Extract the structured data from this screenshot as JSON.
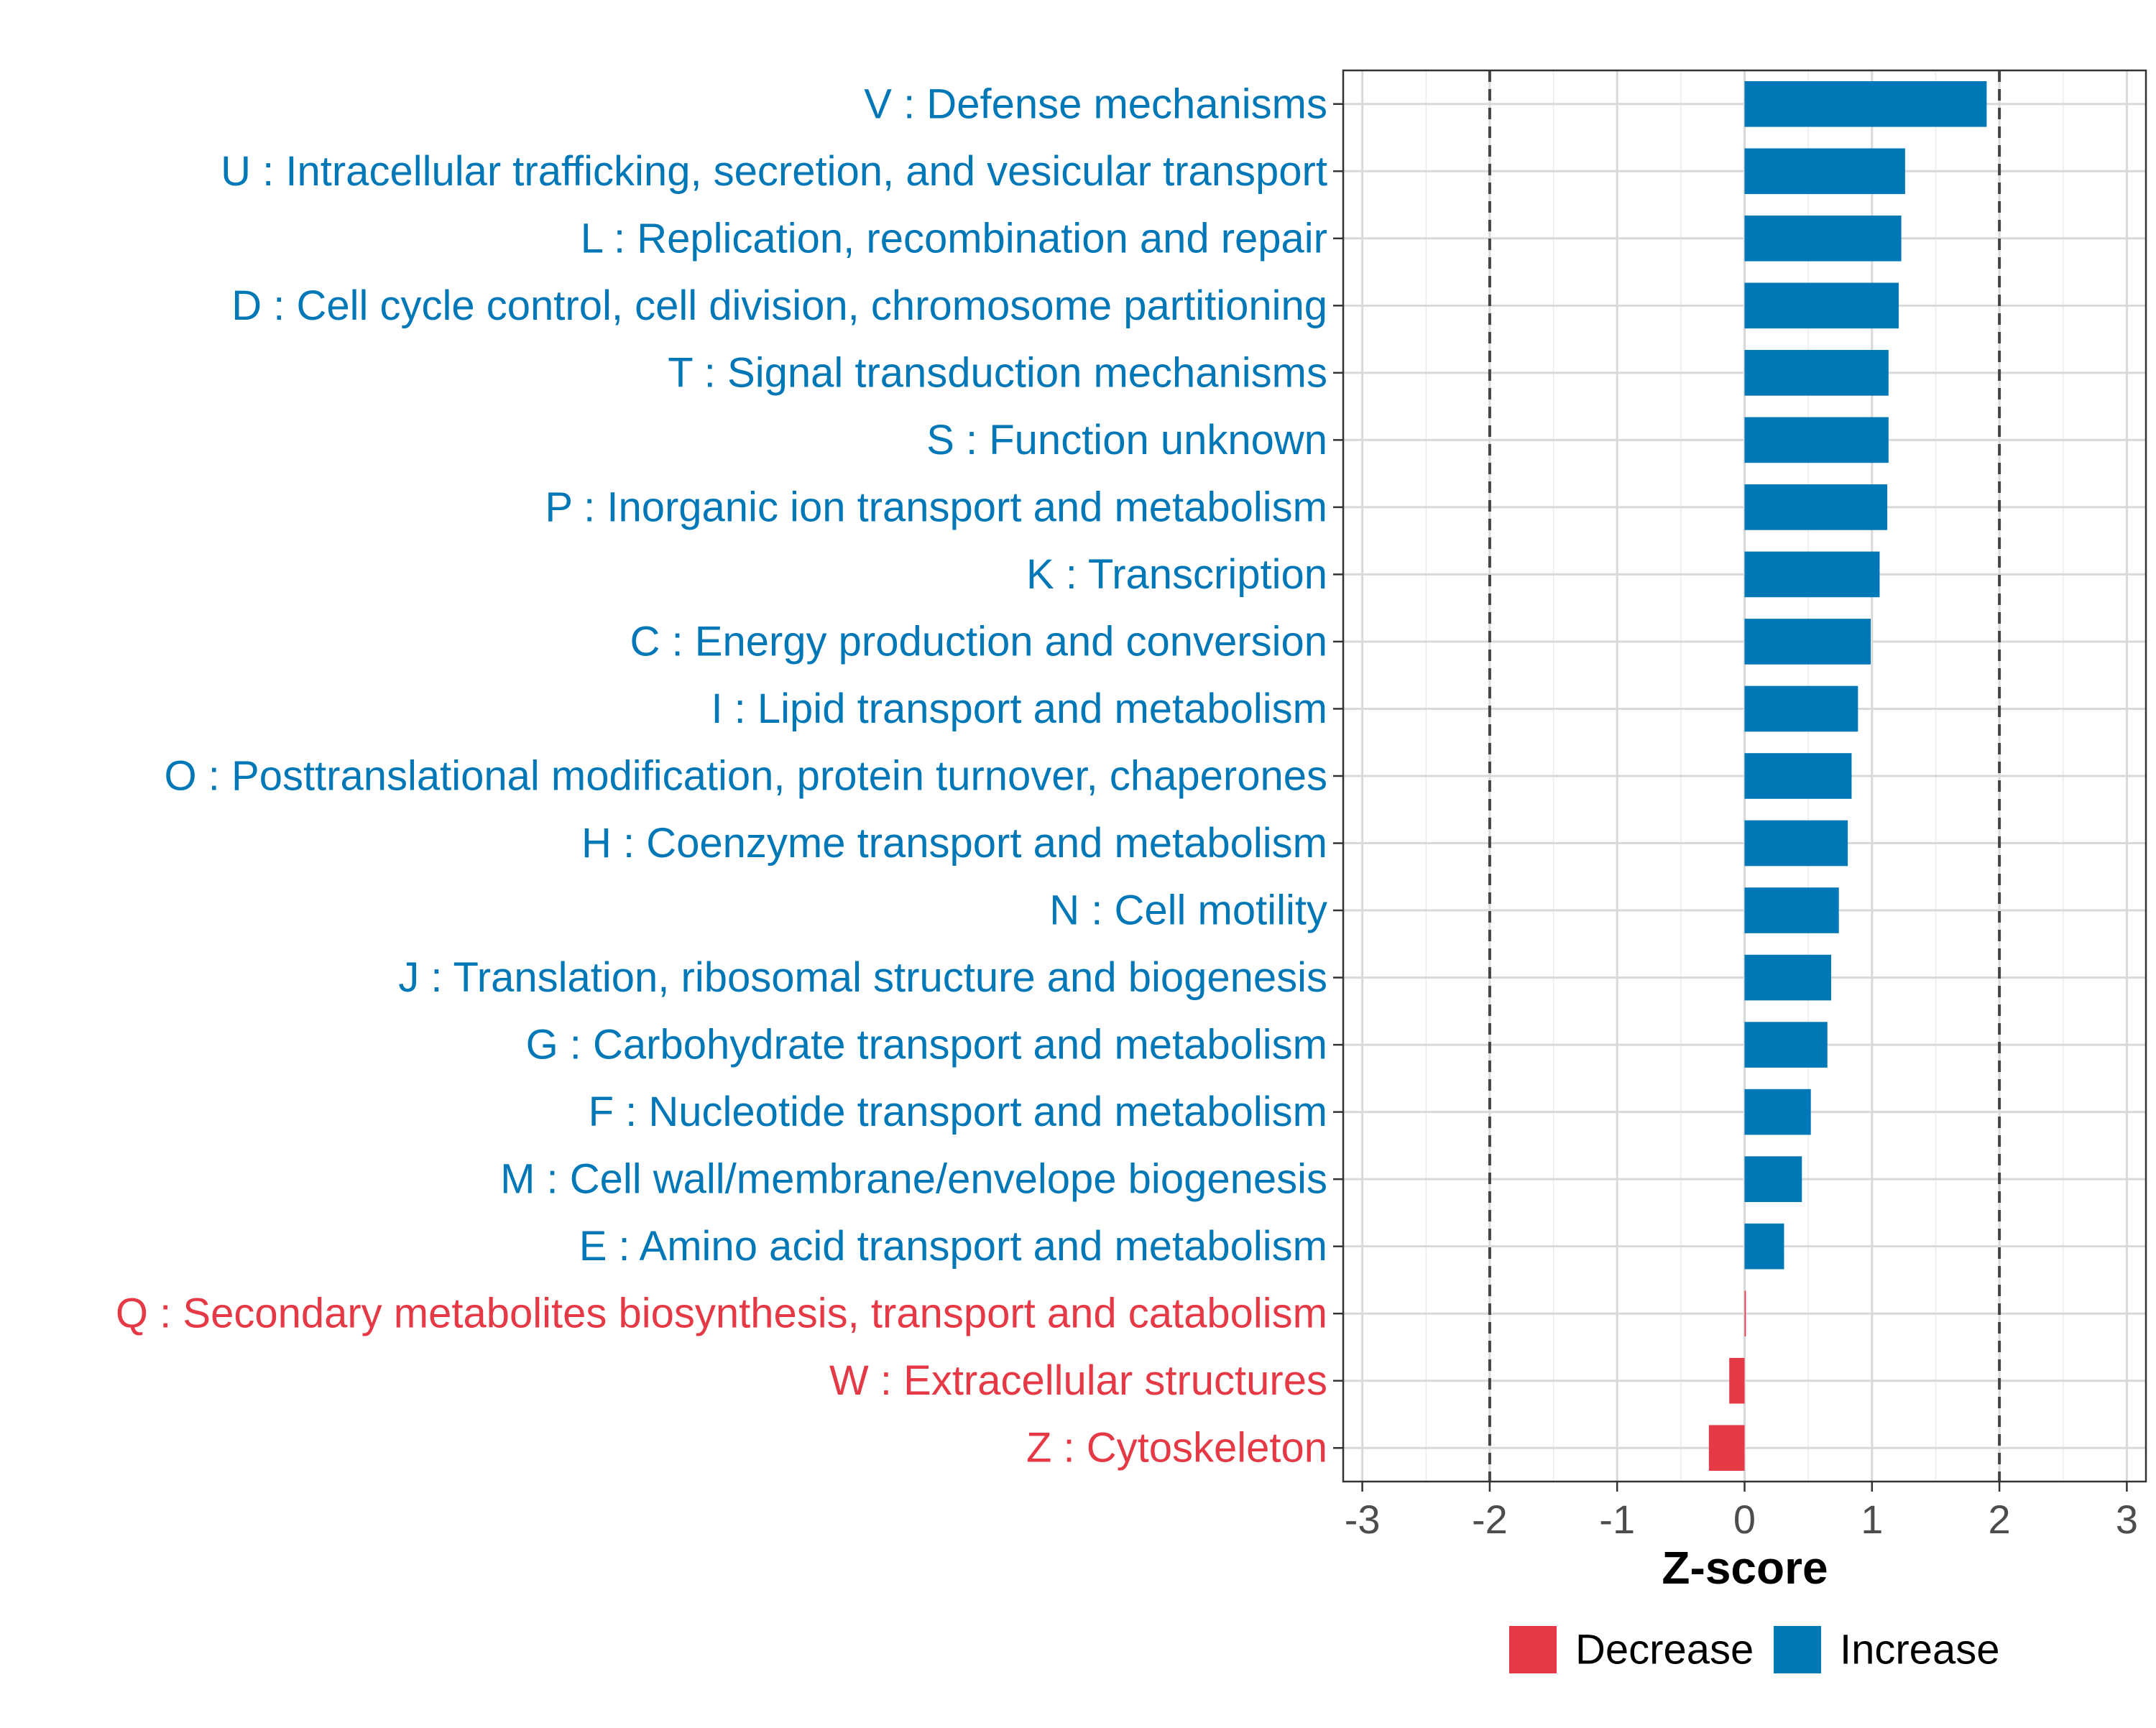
{
  "chart_data": {
    "type": "bar",
    "orientation": "horizontal",
    "xlabel": "Z-score",
    "ylabel": "",
    "xlim": [
      -3.15,
      3.15
    ],
    "xticks": [
      -3,
      -2,
      -1,
      0,
      1,
      2,
      3
    ],
    "xtick_labels": [
      "-3",
      "-2",
      "-1",
      "0",
      "1",
      "2",
      "3"
    ],
    "reference_lines": [
      -2,
      2
    ],
    "grid": true,
    "legend_position": "bottom",
    "colors": {
      "Decrease": "#E63946",
      "Increase": "#0077B6"
    },
    "categories": [
      "V : Defense mechanisms",
      "U : Intracellular trafficking, secretion, and vesicular transport",
      "L : Replication, recombination and repair",
      "D : Cell cycle control, cell division, chromosome partitioning",
      "T : Signal transduction mechanisms",
      "S : Function unknown",
      "P : Inorganic ion transport and metabolism",
      "K : Transcription",
      "C : Energy production and conversion",
      "I : Lipid transport and metabolism",
      "O : Posttranslational modification, protein turnover, chaperones",
      "H : Coenzyme transport and metabolism",
      "N : Cell motility",
      "J : Translation, ribosomal structure and biogenesis",
      "G : Carbohydrate transport and metabolism",
      "F : Nucleotide transport and metabolism",
      "M : Cell wall/membrane/envelope biogenesis",
      "E : Amino acid transport and metabolism",
      "Q : Secondary metabolites biosynthesis, transport and catabolism",
      "W : Extracellular structures",
      "Z : Cytoskeleton"
    ],
    "values": [
      1.9,
      1.26,
      1.23,
      1.21,
      1.13,
      1.13,
      1.12,
      1.06,
      0.99,
      0.89,
      0.84,
      0.81,
      0.74,
      0.68,
      0.65,
      0.52,
      0.45,
      0.31,
      0.01,
      -0.12,
      -0.28
    ],
    "groups": [
      "Increase",
      "Increase",
      "Increase",
      "Increase",
      "Increase",
      "Increase",
      "Increase",
      "Increase",
      "Increase",
      "Increase",
      "Increase",
      "Increase",
      "Increase",
      "Increase",
      "Increase",
      "Increase",
      "Increase",
      "Increase",
      "Decrease",
      "Decrease",
      "Decrease"
    ],
    "legend": [
      "Decrease",
      "Increase"
    ]
  }
}
